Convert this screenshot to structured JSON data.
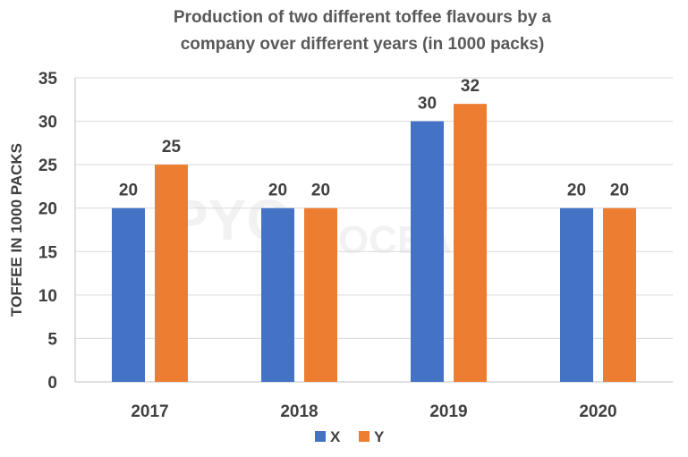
{
  "chart_data": {
    "type": "bar",
    "title": "Production of two different toffee flavours by a company over different years (in 1000 packs)",
    "title_lines": [
      "Production of two different toffee flavours by a",
      "company over different years (in 1000 packs)"
    ],
    "xlabel": "",
    "ylabel": "TOFFEE IN 1000 PACKS",
    "categories": [
      "2017",
      "2018",
      "2019",
      "2020"
    ],
    "series": [
      {
        "name": "X",
        "values": [
          20,
          20,
          30,
          20
        ],
        "color": "#4472C4"
      },
      {
        "name": "Y",
        "values": [
          25,
          20,
          32,
          20
        ],
        "color": "#ED7D31"
      }
    ],
    "ylim": [
      0,
      35
    ],
    "yticks": [
      0,
      5,
      10,
      15,
      20,
      25,
      30,
      35
    ],
    "grid": true,
    "legend_position": "bottom",
    "data_labels": true,
    "gridline_color": "#d9d9d9"
  },
  "watermark": {
    "main": "PYQ",
    "sub": "OCEAN"
  }
}
